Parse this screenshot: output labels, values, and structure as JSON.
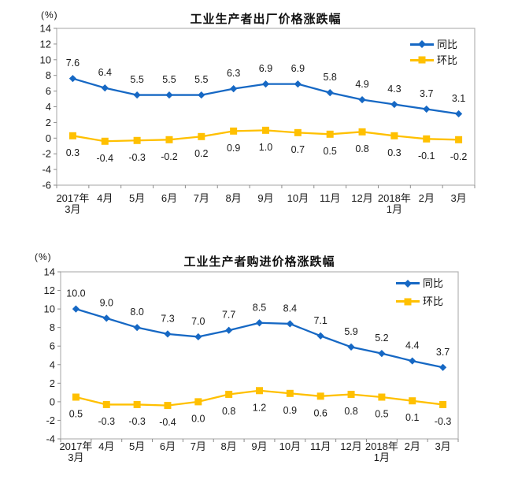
{
  "page": {
    "background": "#ffffff"
  },
  "style": {
    "blue": "#1668C4",
    "yellow": "#FFC000",
    "plot_border_color": "#b3b3b3",
    "tick_color": "#8c8c8c",
    "text_color": "#1a1a1a"
  },
  "chart_data": [
    {
      "type": "line",
      "title": "工业生产者出厂价格涨跌幅",
      "unit_label": "(%)",
      "xlabel": "",
      "ylabel": "(%)",
      "ylim": [
        -6,
        14
      ],
      "ytick_step": 2,
      "grid": false,
      "legend_position": "top-right",
      "categories": [
        "2017年\n3月",
        "4月",
        "5月",
        "6月",
        "7月",
        "8月",
        "9月",
        "10月",
        "11月",
        "12月",
        "2018年\n1月",
        "2月",
        "3月"
      ],
      "series": [
        {
          "name": "同比",
          "marker": "diamond",
          "color": "#1668C4",
          "label_position": "above",
          "values": [
            7.6,
            6.4,
            5.5,
            5.5,
            5.5,
            6.3,
            6.9,
            6.9,
            5.8,
            4.9,
            4.3,
            3.7,
            3.1
          ]
        },
        {
          "name": "环比",
          "marker": "square",
          "color": "#FFC000",
          "label_position": "below",
          "values": [
            0.3,
            -0.4,
            -0.3,
            -0.2,
            0.2,
            0.9,
            1.0,
            0.7,
            0.5,
            0.8,
            0.3,
            -0.1,
            -0.2
          ]
        }
      ]
    },
    {
      "type": "line",
      "title": "工业生产者购进价格涨跌幅",
      "unit_label": "(%)",
      "xlabel": "",
      "ylabel": "(%)",
      "ylim": [
        -4,
        14
      ],
      "ytick_step": 2,
      "grid": false,
      "legend_position": "top-right",
      "categories": [
        "2017年\n3月",
        "4月",
        "5月",
        "6月",
        "7月",
        "8月",
        "9月",
        "10月",
        "11月",
        "12月",
        "2018年\n1月",
        "2月",
        "3月"
      ],
      "series": [
        {
          "name": "同比",
          "marker": "diamond",
          "color": "#1668C4",
          "label_position": "above",
          "values": [
            10.0,
            9.0,
            8.0,
            7.3,
            7.0,
            7.7,
            8.5,
            8.4,
            7.1,
            5.9,
            5.2,
            4.4,
            3.7
          ]
        },
        {
          "name": "环比",
          "marker": "square",
          "color": "#FFC000",
          "label_position": "below",
          "values": [
            0.5,
            -0.3,
            -0.3,
            -0.4,
            0.0,
            0.8,
            1.2,
            0.9,
            0.6,
            0.8,
            0.5,
            0.1,
            -0.3
          ]
        }
      ]
    }
  ]
}
